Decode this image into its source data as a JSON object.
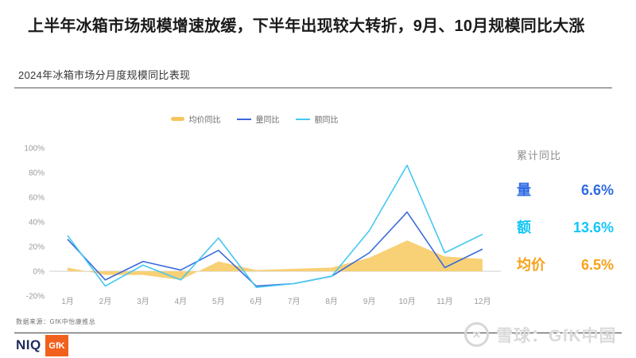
{
  "header": {
    "title": "上半年冰箱市场规模增速放缓，下半年出现较大转折，9月、10月规模同比大涨",
    "subtitle": "2024年冰箱市场分月度规模同比表现"
  },
  "legend": [
    {
      "label": "均价同比",
      "color": "#f6c55c",
      "shape": "swatch"
    },
    {
      "label": "量同比",
      "color": "#3a6bdc",
      "shape": "line"
    },
    {
      "label": "额同比",
      "color": "#45c8f2",
      "shape": "line"
    }
  ],
  "chart_data": {
    "type": "area+line",
    "title": "2024年冰箱市场分月度规模同比表现",
    "categories": [
      "1月",
      "2月",
      "3月",
      "4月",
      "5月",
      "6月",
      "7月",
      "8月",
      "9月",
      "10月",
      "11月",
      "12月"
    ],
    "series": [
      {
        "name": "均价同比",
        "type": "area",
        "color": "#f8cd6e",
        "values": [
          3,
          -3,
          -3,
          -7,
          8,
          1,
          2,
          3,
          11,
          25,
          12,
          10
        ]
      },
      {
        "name": "量同比",
        "type": "line",
        "color": "#3a6bdc",
        "values": [
          26,
          -7,
          8,
          1,
          17,
          -12,
          -10,
          -4,
          15,
          48,
          3,
          18
        ]
      },
      {
        "name": "额同比",
        "type": "line",
        "color": "#45c8f2",
        "values": [
          29,
          -12,
          5,
          -7,
          27,
          -13,
          -10,
          -4,
          33,
          86,
          15,
          30
        ]
      }
    ],
    "ylim": [
      -20,
      100
    ],
    "yticks": [
      100,
      80,
      60,
      40,
      20,
      0,
      -20
    ],
    "ytick_suffix": "%",
    "grid": "zero-line-only",
    "legend_position": "top-center",
    "axis_color": "#cfcfcf",
    "tick_label_color": "#9b9b9b"
  },
  "summary_panel": {
    "title": "累计同比",
    "rows": [
      {
        "label": "量",
        "value": "6.6%",
        "color": "#2f6be4"
      },
      {
        "label": "额",
        "value": "13.6%",
        "color": "#13c6f7"
      },
      {
        "label": "均价",
        "value": "6.5%",
        "color": "#f7a21b"
      }
    ]
  },
  "footer": {
    "source": "数据来源：GfK中怡康推总",
    "niq_logo_text": "NIQ",
    "gfk_logo_text": "GfK"
  },
  "watermark": {
    "icon_glyph": "×",
    "text": "雪球：GfK中国"
  }
}
